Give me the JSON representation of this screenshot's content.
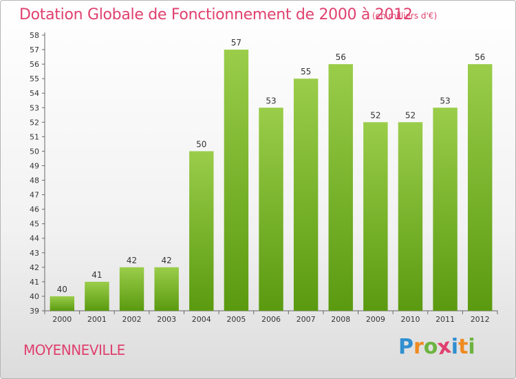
{
  "chart_data": {
    "type": "bar",
    "title": "Dotation Globale de Fonctionnement de 2000 à 2012",
    "subtitle": "(en milliers d'€)",
    "categories": [
      "2000",
      "2001",
      "2002",
      "2003",
      "2004",
      "2005",
      "2006",
      "2007",
      "2008",
      "2009",
      "2010",
      "2011",
      "2012"
    ],
    "values": [
      40,
      41,
      42,
      42,
      50,
      57,
      53,
      55,
      56,
      52,
      52,
      53,
      56
    ],
    "data_labels": [
      "40",
      "41",
      "42",
      "42",
      "50",
      "57",
      "53",
      "55",
      "56",
      "52",
      "52",
      "53",
      "56"
    ],
    "yticks": [
      "39",
      "40",
      "41",
      "42",
      "43",
      "44",
      "45",
      "46",
      "47",
      "48",
      "49",
      "50",
      "51",
      "52",
      "53",
      "54",
      "55",
      "56",
      "57",
      "58"
    ],
    "ylim": [
      39,
      58
    ],
    "xlabel": "",
    "ylabel": "",
    "grid": false,
    "legend": "none",
    "bar_color_top": "#9acd4a",
    "bar_color_bottom": "#5a9a10"
  },
  "footer": {
    "commune": "MOYENNEVILLE",
    "logo_letters": [
      {
        "char": "P",
        "color": "#2f8fd0"
      },
      {
        "char": "r",
        "color": "#f08a20"
      },
      {
        "char": "o",
        "color": "#6cb33f"
      },
      {
        "char": "x",
        "color": "#e0406e"
      },
      {
        "char": "i",
        "color": "#2f8fd0"
      },
      {
        "char": "t",
        "color": "#f08a20"
      },
      {
        "char": "i",
        "color": "#6cb33f"
      }
    ]
  },
  "colors": {
    "accent": "#e0406e"
  }
}
